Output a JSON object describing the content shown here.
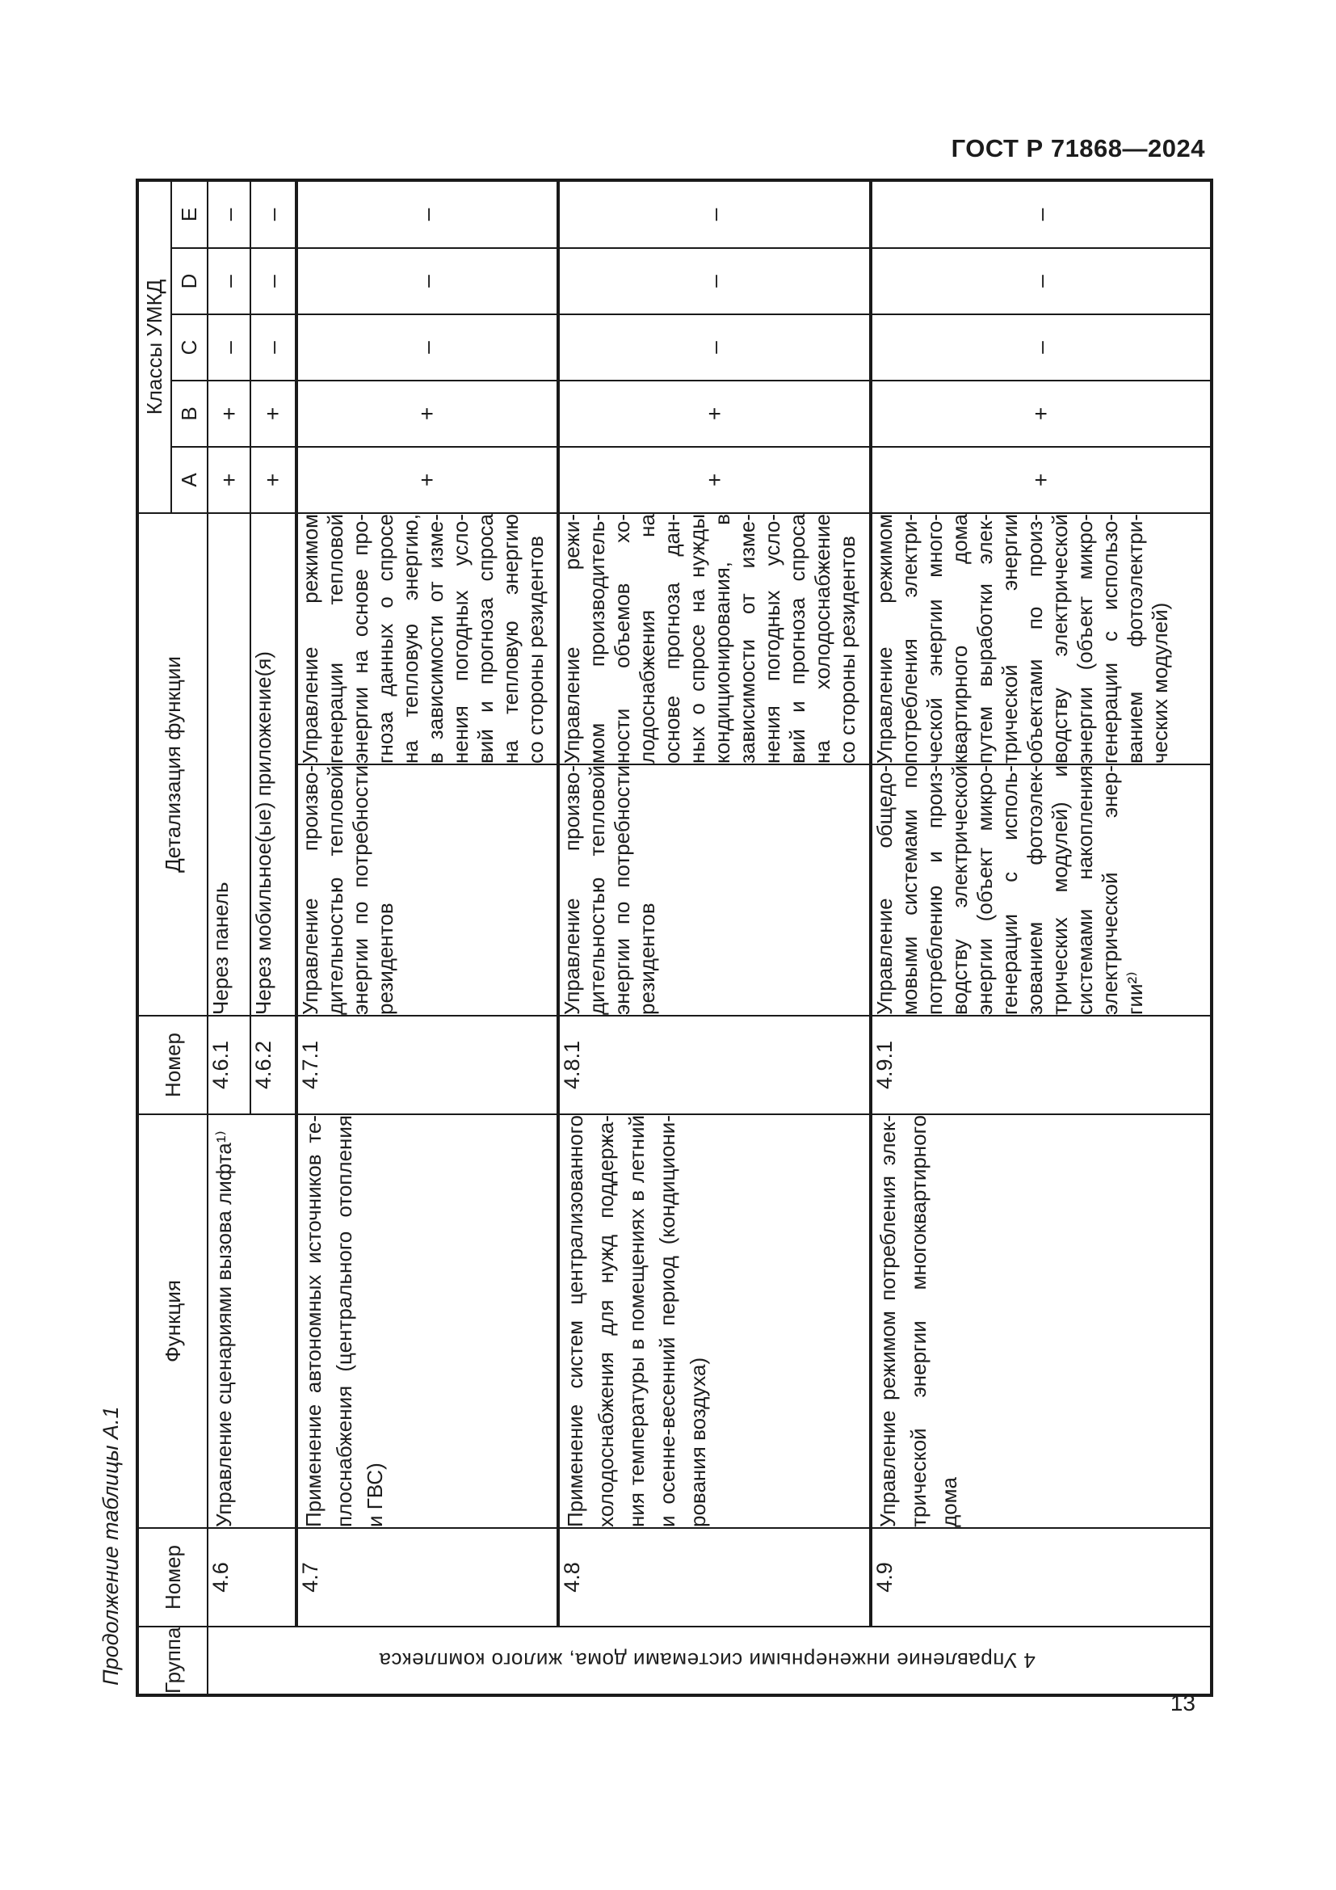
{
  "page": {
    "doc_header": "ГОСТ Р 71868—2024",
    "page_number": "13",
    "table_caption": "Продолжение таблицы А.1"
  },
  "table": {
    "headers": {
      "group": "Группа",
      "number": "Номер",
      "function": "Функция",
      "number2": "Номер",
      "detail": "Детализация функции",
      "classes": "Классы УМКД",
      "class_labels": [
        "А",
        "В",
        "С",
        "D",
        "Е"
      ]
    },
    "group_value": "4 Управление инженерными системами дома, жилого комплекса",
    "rows": [
      {
        "number": "4.6",
        "function_lines": [
          "Управление сценариями вызова лифта¹⁾"
        ],
        "sub_number": "4.6.1",
        "detail_lines": [
          "Через панель"
        ],
        "classes": [
          "+",
          "+",
          "–",
          "–",
          "–"
        ]
      },
      {
        "sub_number": "4.6.2",
        "detail_lines": [
          "Через мобильное(ые) приложение(я)"
        ],
        "classes": [
          "+",
          "+",
          "–",
          "–",
          "–"
        ]
      },
      {
        "number": "4.7",
        "function_lines": [
          "Применение автономных источников те-",
          "плоснабжения (центрального отопления",
          "и ГВС)"
        ],
        "sub_number": "4.7.1",
        "detail_left_lines": [
          "Управление произво-",
          "дительностью тепловой",
          "энергии по потребности",
          "резидентов"
        ],
        "detail_right_lines": [
          "Управление режимом",
          "генерации тепловой",
          "энергии на основе про-",
          "гноза данных о спросе",
          "на тепловую энергию,",
          "в зависимости от изме-",
          "нения погодных усло-",
          "вий и прогноза спроса",
          "на тепловую энергию",
          "со стороны резидентов"
        ],
        "classes": [
          "+",
          "+",
          "–",
          "–",
          "–"
        ]
      },
      {
        "number": "4.8",
        "function_lines": [
          "Применение систем централизованного",
          "холодоснабжения для нужд поддержа-",
          "ния температуры в помещениях в летний",
          "и осенне-весенний период (кондициони-",
          "рования воздуха)"
        ],
        "sub_number": "4.8.1",
        "detail_left_lines": [
          "Управление произво-",
          "дительностью тепловой",
          "энергии по потребности",
          "резидентов"
        ],
        "detail_right_lines": [
          "Управление режи-",
          "мом производитель-",
          "ности объемов хо-",
          "лодоснабжения на",
          "основе прогноза дан-",
          "ных о спросе на нужды",
          "кондиционирования, в",
          "зависимости от изме-",
          "нения погодных усло-",
          "вий и прогноза спроса",
          "на холодоснабжение",
          "со стороны резидентов"
        ],
        "classes": [
          "+",
          "+",
          "–",
          "–",
          "–"
        ]
      },
      {
        "number": "4.9",
        "function_lines": [
          "Управление режимом потребления элек-",
          "трической энергии многоквартирного",
          "дома"
        ],
        "sub_number": "4.9.1",
        "detail_left_lines": [
          "Управление общедо-",
          "мовыми системами по",
          "потреблению и произ-",
          "водству электрической",
          "энергии (объект микро-",
          "генерации с исполь-",
          "зованием фотоэлек-",
          "трических модулей) и",
          "системами накопления",
          "электрической энер-",
          "гии²⁾"
        ],
        "detail_right_lines": [
          "Управление режимом",
          "потребления электри-",
          "ческой энергии много-",
          "квартирного дома",
          "путем выработки элек-",
          "трической энергии",
          "объектами по произ-",
          "водству электрической",
          "энергии (объект микро-",
          "генерации с использо-",
          "ванием фотоэлектри-",
          "ческих модулей)"
        ],
        "classes": [
          "+",
          "+",
          "–",
          "–",
          "–"
        ]
      }
    ]
  }
}
